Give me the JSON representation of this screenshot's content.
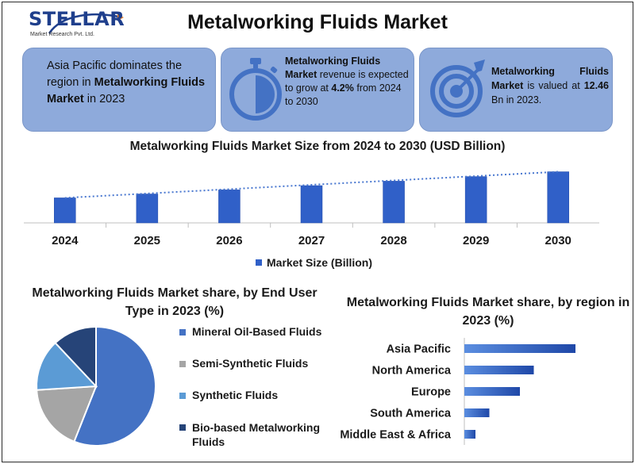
{
  "logo": {
    "name": "STELLAR",
    "tagline": "Market Research Pvt. Ltd."
  },
  "title": "Metalworking Fluids Market",
  "cards": [
    {
      "pre": "Asia Pacific dominates the region in ",
      "bold": "Metalworking Fluids Market",
      "post": " in 2023",
      "icon": "none"
    },
    {
      "bold": "Metalworking Fluids Market",
      "pre2": " revenue is expected to grow at ",
      "bold2": "4.2%",
      "post": " from 2024 to 2030",
      "icon": "stopwatch-icon"
    },
    {
      "bold": "Metalworking Fluids Market",
      "pre2": " is valued at ",
      "bold2": "12.46",
      "post": " Bn in 2023.",
      "icon": "target-icon"
    }
  ],
  "colors": {
    "bar": "#3060c8",
    "bar_dark": "#1f48a8",
    "card": "#8eaadb",
    "trend": "#4a78d0"
  },
  "chart_data": [
    {
      "type": "bar",
      "title": "Metalworking Fluids Market  Size from 2024 to 2030 (USD Billion)",
      "categories": [
        "2024",
        "2025",
        "2026",
        "2027",
        "2028",
        "2029",
        "2030"
      ],
      "series": [
        {
          "name": "Market Size (Billion)",
          "values": [
            12.98,
            13.52,
            14.09,
            14.68,
            15.3,
            15.94,
            16.61
          ]
        }
      ],
      "trendline": "dotted-linear",
      "legend_position": "bottom"
    },
    {
      "type": "pie",
      "title": "Metalworking Fluids Market  share, by End User Type in 2023 (%)",
      "labels": [
        "Mineral Oil-Based Fluids",
        "Semi-Synthetic Fluids",
        "Synthetic Fluids",
        "Bio-based Metalworking Fluids"
      ],
      "values": [
        56,
        18,
        14,
        12
      ],
      "colors": [
        "#4472c4",
        "#a5a5a5",
        "#5b9bd5",
        "#264478"
      ],
      "legend_position": "right"
    },
    {
      "type": "bar",
      "orientation": "horizontal",
      "title": "Metalworking Fluids Market  share, by region in 2023 (%)",
      "categories": [
        "Asia Pacific",
        "North America",
        "Europe",
        "South America",
        "Middle East & Africa"
      ],
      "values": [
        40,
        25,
        20,
        9,
        4
      ]
    }
  ]
}
